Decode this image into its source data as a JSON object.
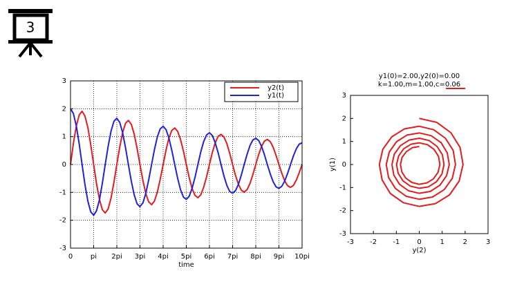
{
  "slide": {
    "number": "3"
  },
  "chart_data": [
    {
      "type": "line",
      "xlabel": "time",
      "x": [
        0,
        0.39,
        0.79,
        1.18,
        1.57,
        1.96,
        2.36,
        2.75,
        3.14,
        3.53,
        3.93,
        4.32,
        4.71,
        5.11,
        5.5,
        5.89,
        6.28,
        6.68,
        7.07,
        7.46,
        7.85,
        8.25,
        8.64,
        9.03,
        9.42,
        9.82,
        10.21,
        10.6,
        11.0,
        11.39,
        11.78,
        12.17,
        12.57,
        12.96,
        13.35,
        13.74,
        14.14,
        14.53,
        14.92,
        15.32,
        15.71,
        16.1,
        16.49,
        16.89,
        17.28,
        17.67,
        18.06,
        18.46,
        18.85,
        19.24,
        19.63,
        20.03,
        20.42,
        20.81,
        21.21,
        21.6,
        21.99,
        22.38,
        22.78,
        23.17,
        23.56,
        23.96,
        24.35,
        24.74,
        25.13,
        25.53,
        25.92,
        26.31,
        26.7,
        27.1,
        27.49,
        27.88,
        28.27,
        28.67,
        29.06,
        29.45,
        29.85,
        30.24,
        30.63,
        31.02,
        31.42
      ],
      "series": [
        {
          "name": "y2(t)",
          "color": "#e41a1c",
          "values": [
            0,
            0.76,
            1.38,
            1.78,
            1.91,
            1.74,
            1.32,
            0.7,
            0,
            -0.69,
            -1.26,
            -1.62,
            -1.74,
            -1.59,
            -1.2,
            -0.64,
            0,
            0.63,
            1.14,
            1.48,
            1.58,
            1.44,
            1.09,
            0.58,
            0,
            -0.57,
            -1.04,
            -1.34,
            -1.44,
            -1.31,
            -0.99,
            -0.53,
            0,
            0.52,
            0.95,
            1.22,
            1.31,
            1.19,
            0.9,
            0.48,
            0,
            -0.47,
            -0.86,
            -1.11,
            -1.19,
            -1.09,
            -0.82,
            -0.44,
            0,
            0.43,
            0.78,
            1.01,
            1.08,
            0.99,
            0.75,
            0.4,
            0,
            -0.39,
            -0.71,
            -0.92,
            -0.99,
            -0.9,
            -0.68,
            -0.36,
            0,
            0.36,
            0.65,
            0.84,
            0.9,
            0.82,
            0.62,
            0.33,
            0,
            -0.32,
            -0.59,
            -0.76,
            -0.82,
            -0.75,
            -0.56,
            -0.3,
            0
          ]
        },
        {
          "name": "y1(t)",
          "color": "#1f1fe0",
          "values": [
            2,
            1.83,
            1.38,
            0.74,
            0,
            -0.72,
            -1.32,
            -1.7,
            -1.82,
            -1.66,
            -1.26,
            -0.67,
            0,
            0.66,
            1.2,
            1.55,
            1.66,
            1.51,
            1.14,
            0.61,
            0,
            -0.6,
            -1.09,
            -1.41,
            -1.51,
            -1.38,
            -1.04,
            -0.56,
            0,
            0.54,
            0.99,
            1.28,
            1.37,
            1.25,
            0.95,
            0.51,
            0,
            -0.49,
            -0.9,
            -1.17,
            -1.25,
            -1.14,
            -0.86,
            -0.46,
            0,
            0.45,
            0.82,
            1.06,
            1.14,
            1.04,
            0.78,
            0.42,
            0,
            -0.41,
            -0.75,
            -0.97,
            -1.03,
            -0.94,
            -0.71,
            -0.38,
            0,
            0.37,
            0.68,
            0.88,
            0.94,
            0.86,
            0.65,
            0.35,
            0,
            -0.34,
            -0.62,
            -0.8,
            -0.86,
            -0.78,
            -0.59,
            -0.32,
            0,
            0.31,
            0.56,
            0.73,
            0.78
          ]
        }
      ],
      "xlim": [
        0,
        31.4159
      ],
      "xticks": [
        0,
        {
          "value": 3.14159,
          "label": "pi"
        },
        {
          "value": 6.28319,
          "label": "2pi"
        },
        {
          "value": 9.42478,
          "label": "3pi"
        },
        {
          "value": 12.56637,
          "label": "4pi"
        },
        {
          "value": 15.70796,
          "label": "5pi"
        },
        {
          "value": 18.84956,
          "label": "6pi"
        },
        {
          "value": 21.99115,
          "label": "7pi"
        },
        {
          "value": 25.13274,
          "label": "8pi"
        },
        {
          "value": 28.27433,
          "label": "9pi"
        },
        {
          "value": 31.4159,
          "label": "10pi"
        }
      ],
      "ylim": [
        -3,
        3
      ],
      "yticks": [
        -3,
        -2,
        -1,
        0,
        1,
        2,
        3
      ],
      "grid": true,
      "legend": "upper right"
    },
    {
      "type": "line",
      "title": [
        "y1(0)=2.00,y2(0)=0.00",
        "k=1.00,m=1.00,c=0.06"
      ],
      "xlabel": "y(2)",
      "ylabel": "y(1)",
      "x": [
        0,
        0.76,
        1.38,
        1.78,
        1.91,
        1.74,
        1.32,
        0.7,
        0,
        -0.69,
        -1.26,
        -1.62,
        -1.74,
        -1.59,
        -1.2,
        -0.64,
        0,
        0.63,
        1.14,
        1.48,
        1.58,
        1.44,
        1.09,
        0.58,
        0,
        -0.57,
        -1.04,
        -1.34,
        -1.44,
        -1.31,
        -0.99,
        -0.53,
        0,
        0.52,
        0.95,
        1.22,
        1.31,
        1.19,
        0.9,
        0.48,
        0,
        -0.47,
        -0.86,
        -1.11,
        -1.19,
        -1.09,
        -0.82,
        -0.44,
        0,
        0.43,
        0.78,
        1.01,
        1.08,
        0.99,
        0.75,
        0.4,
        0,
        -0.39,
        -0.71,
        -0.92,
        -0.99,
        -0.9,
        -0.68,
        -0.36,
        0,
        0.36,
        0.65,
        0.84,
        0.9,
        0.82,
        0.62,
        0.33,
        0,
        -0.32,
        -0.59,
        -0.76,
        -0.82,
        -0.75,
        -0.56,
        -0.3,
        0
      ],
      "series": [
        {
          "color": "#e41a1c",
          "values": [
            2,
            1.83,
            1.38,
            0.74,
            0,
            -0.72,
            -1.32,
            -1.7,
            -1.82,
            -1.66,
            -1.26,
            -0.67,
            0,
            0.66,
            1.2,
            1.55,
            1.66,
            1.51,
            1.14,
            0.61,
            0,
            -0.6,
            -1.09,
            -1.41,
            -1.51,
            -1.38,
            -1.04,
            -0.56,
            0,
            0.54,
            0.99,
            1.28,
            1.37,
            1.25,
            0.95,
            0.51,
            0,
            -0.49,
            -0.9,
            -1.17,
            -1.25,
            -1.14,
            -0.86,
            -0.46,
            0,
            0.45,
            0.82,
            1.06,
            1.14,
            1.04,
            0.78,
            0.42,
            0,
            -0.41,
            -0.75,
            -0.97,
            -1.03,
            -0.94,
            -0.71,
            -0.38,
            0,
            0.37,
            0.68,
            0.88,
            0.94,
            0.86,
            0.65,
            0.35,
            0,
            -0.34,
            -0.62,
            -0.8,
            -0.86,
            -0.78,
            -0.59,
            -0.32,
            0,
            0.31,
            0.56,
            0.73,
            0.78
          ]
        }
      ],
      "xlim": [
        -3,
        3
      ],
      "xticks": [
        -3,
        -2,
        -1,
        0,
        1,
        2,
        3
      ],
      "ylim": [
        -3,
        3
      ],
      "yticks": [
        -3,
        -2,
        -1,
        0,
        1,
        2,
        3
      ],
      "grid": false
    }
  ]
}
